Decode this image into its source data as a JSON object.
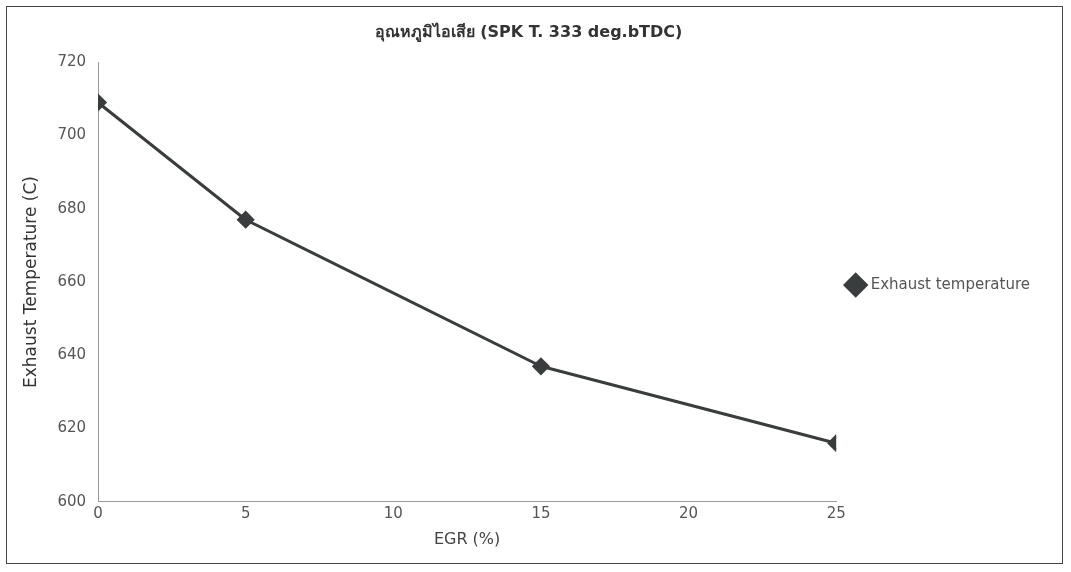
{
  "chart_data": {
    "type": "line",
    "title": "อุณหภูมิไอเสีย (SPK T. 333 deg.bTDC)",
    "xlabel": "EGR (%)",
    "ylabel": "Exhaust Temperature (C)",
    "x": [
      0,
      5,
      15,
      25
    ],
    "series": [
      {
        "name": "Exhaust temperature",
        "color": "#3a3d3d",
        "values": [
          709,
          677,
          637,
          616
        ]
      }
    ],
    "xlim": [
      0,
      25
    ],
    "xticks": [
      0,
      5,
      10,
      15,
      20,
      25
    ],
    "ylim": [
      600,
      720
    ],
    "yticks": [
      600,
      620,
      640,
      660,
      680,
      700,
      720
    ],
    "grid": false,
    "legend": "right",
    "marker": "diamond",
    "line_style": "solid"
  }
}
